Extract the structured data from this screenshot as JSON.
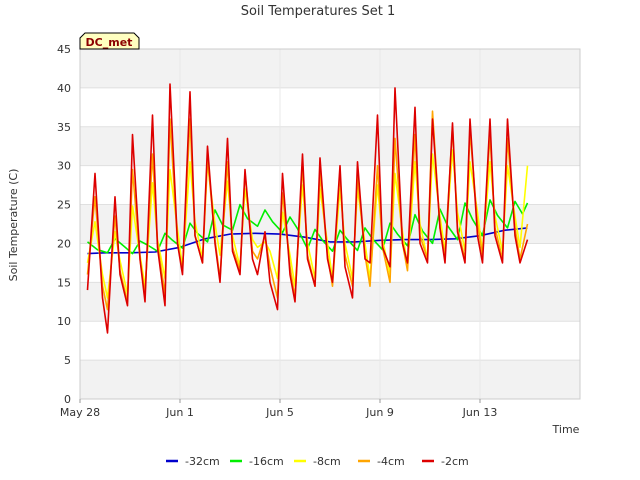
{
  "chart_data": {
    "type": "line",
    "title": "Soil Temperatures Set 1",
    "xlabel": "Time",
    "ylabel": "Soil Temperature (C)",
    "badge": "DC_met",
    "ylim": [
      0,
      45
    ],
    "yticks": [
      0,
      5,
      10,
      15,
      20,
      25,
      30,
      35,
      40,
      45
    ],
    "xlim_days": [
      0,
      20
    ],
    "xticks": [
      {
        "day": 0,
        "label": "May 28"
      },
      {
        "day": 4,
        "label": "Jun 1"
      },
      {
        "day": 8,
        "label": "Jun 5"
      },
      {
        "day": 12,
        "label": "Jun 9"
      },
      {
        "day": 16,
        "label": "Jun 13"
      }
    ],
    "grid": true,
    "legend_position": "bottom-center",
    "series": [
      {
        "name": "-32cm",
        "color": "#0000cc",
        "x": [
          0.3,
          1,
          2,
          3,
          4,
          5,
          6,
          7,
          8,
          9,
          10,
          11,
          12,
          13,
          14,
          15,
          16,
          17,
          17.9
        ],
        "y": [
          18.7,
          18.8,
          18.8,
          18.9,
          19.5,
          20.6,
          21.2,
          21.3,
          21.2,
          20.8,
          20.2,
          20.2,
          20.4,
          20.5,
          20.5,
          20.6,
          21.0,
          21.7,
          22.0
        ]
      },
      {
        "name": "-16cm",
        "color": "#00ee00",
        "x": [
          0.3,
          0.7,
          1.1,
          1.4,
          1.7,
          2.1,
          2.4,
          2.7,
          3.1,
          3.4,
          3.7,
          4.1,
          4.4,
          4.7,
          5.1,
          5.4,
          5.7,
          6.1,
          6.4,
          6.7,
          7.1,
          7.4,
          7.7,
          8.1,
          8.4,
          8.7,
          9.1,
          9.4,
          9.7,
          10.1,
          10.4,
          10.7,
          11.1,
          11.4,
          11.7,
          12.1,
          12.4,
          12.7,
          13.1,
          13.4,
          13.7,
          14.1,
          14.4,
          14.7,
          15.1,
          15.4,
          15.7,
          16.1,
          16.4,
          16.7,
          17.1,
          17.4,
          17.7,
          17.9
        ],
        "y": [
          20.2,
          19.2,
          18.8,
          20.6,
          19.8,
          18.7,
          20.3,
          19.8,
          19.0,
          21.3,
          20.4,
          19.4,
          22.6,
          21.3,
          20.2,
          24.3,
          22.4,
          21.7,
          25.0,
          23.2,
          22.2,
          24.3,
          22.8,
          21.4,
          23.4,
          21.9,
          19.3,
          21.8,
          20.4,
          19.0,
          21.7,
          20.5,
          19.1,
          22.0,
          20.6,
          19.2,
          22.6,
          21.2,
          19.7,
          23.7,
          21.6,
          20.0,
          24.4,
          22.3,
          20.5,
          25.2,
          23.1,
          21.0,
          25.6,
          23.6,
          22.0,
          25.4,
          23.8,
          25.2
        ]
      },
      {
        "name": "-8cm",
        "color": "#ffff00",
        "x": [
          0.3,
          0.6,
          0.9,
          1.1,
          1.4,
          1.6,
          1.9,
          2.1,
          2.4,
          2.6,
          2.9,
          3.1,
          3.4,
          3.6,
          3.9,
          4.1,
          4.4,
          4.6,
          4.9,
          5.1,
          5.4,
          5.6,
          5.9,
          6.1,
          6.4,
          6.6,
          6.9,
          7.1,
          7.4,
          7.6,
          7.9,
          8.1,
          8.4,
          8.6,
          8.9,
          9.1,
          9.4,
          9.6,
          9.9,
          10.1,
          10.4,
          10.6,
          10.9,
          11.1,
          11.4,
          11.6,
          11.9,
          12.1,
          12.4,
          12.6,
          12.9,
          13.1,
          13.4,
          13.6,
          13.9,
          14.1,
          14.4,
          14.6,
          14.9,
          15.1,
          15.4,
          15.6,
          15.9,
          16.1,
          16.4,
          16.6,
          16.9,
          17.1,
          17.4,
          17.6,
          17.9
        ],
        "y": [
          17.5,
          22.8,
          16.0,
          13.0,
          21.5,
          17.8,
          13.5,
          24.8,
          18.5,
          14.5,
          27.8,
          20.5,
          15.5,
          29.5,
          21.8,
          17.0,
          30.5,
          22.8,
          18.0,
          30.3,
          22.5,
          18.5,
          28.0,
          21.0,
          17.0,
          27.0,
          20.5,
          19.5,
          20.2,
          19.0,
          15.5,
          24.0,
          18.5,
          14.5,
          27.5,
          20.0,
          15.5,
          27.0,
          20.0,
          15.5,
          27.0,
          20.0,
          15.5,
          27.0,
          20.0,
          15.5,
          27.5,
          20.5,
          16.0,
          29.0,
          21.5,
          17.0,
          30.5,
          22.5,
          18.0,
          31.5,
          23.5,
          19.0,
          32.0,
          24.0,
          19.0,
          30.5,
          24.0,
          19.0,
          30.5,
          23.5,
          19.0,
          30.0,
          23.5,
          19.5,
          30.0
        ]
      },
      {
        "name": "-4cm",
        "color": "#ffa500",
        "x": [
          0.3,
          0.6,
          0.9,
          1.1,
          1.4,
          1.6,
          1.9,
          2.1,
          2.4,
          2.6,
          2.9,
          3.1,
          3.4,
          3.6,
          3.9,
          4.1,
          4.4,
          4.6,
          4.9,
          5.1,
          5.4,
          5.6,
          5.9,
          6.1,
          6.4,
          6.6,
          6.9,
          7.1,
          7.4,
          7.6,
          7.9,
          8.1,
          8.4,
          8.6,
          8.9,
          9.1,
          9.4,
          9.6,
          9.9,
          10.1,
          10.4,
          10.6,
          10.9,
          11.1,
          11.4,
          11.6,
          11.9,
          12.1,
          12.4,
          12.6,
          12.9,
          13.1,
          13.4,
          13.6,
          13.9,
          14.1,
          14.4,
          14.6,
          14.9,
          15.1,
          15.4,
          15.6,
          15.9,
          16.1,
          16.4,
          16.6,
          16.9,
          17.1,
          17.4,
          17.6,
          17.9
        ],
        "y": [
          16.0,
          26.0,
          14.5,
          11.5,
          23.5,
          16.5,
          12.5,
          29.5,
          18.0,
          13.5,
          31.5,
          20.0,
          13.5,
          36.0,
          20.0,
          16.5,
          36.0,
          21.0,
          17.5,
          31.0,
          20.5,
          15.5,
          30.5,
          19.5,
          16.5,
          29.0,
          19.0,
          18.0,
          21.0,
          17.0,
          13.0,
          26.5,
          17.0,
          13.0,
          30.0,
          18.5,
          14.5,
          29.0,
          18.5,
          14.5,
          29.0,
          18.5,
          14.5,
          28.5,
          18.5,
          14.5,
          30.0,
          19.5,
          15.0,
          33.5,
          20.0,
          16.5,
          34.0,
          21.0,
          18.0,
          37.0,
          22.0,
          18.5,
          35.0,
          22.0,
          18.0,
          34.5,
          22.5,
          18.5,
          34.0,
          22.0,
          18.0,
          33.5,
          22.0,
          18.0,
          22.5
        ]
      },
      {
        "name": "-2cm",
        "color": "#dd0000",
        "x": [
          0.3,
          0.6,
          0.9,
          1.1,
          1.4,
          1.6,
          1.9,
          2.1,
          2.4,
          2.6,
          2.9,
          3.1,
          3.4,
          3.6,
          3.9,
          4.1,
          4.4,
          4.6,
          4.9,
          5.1,
          5.4,
          5.6,
          5.9,
          6.1,
          6.4,
          6.6,
          6.9,
          7.1,
          7.4,
          7.6,
          7.9,
          8.1,
          8.4,
          8.6,
          8.9,
          9.1,
          9.4,
          9.6,
          9.9,
          10.1,
          10.4,
          10.6,
          10.9,
          11.1,
          11.4,
          11.6,
          11.9,
          12.1,
          12.4,
          12.6,
          12.9,
          13.1,
          13.4,
          13.6,
          13.9,
          14.1,
          14.4,
          14.6,
          14.9,
          15.1,
          15.4,
          15.6,
          15.9,
          16.1,
          16.4,
          16.6,
          16.9,
          17.1,
          17.4,
          17.6,
          17.9
        ],
        "y": [
          14.0,
          29.0,
          13.0,
          8.5,
          26.0,
          16.0,
          12.0,
          34.0,
          18.0,
          12.5,
          36.5,
          19.5,
          12.0,
          40.5,
          20.0,
          16.0,
          39.5,
          21.0,
          17.5,
          32.5,
          20.0,
          15.0,
          33.5,
          19.0,
          16.0,
          29.5,
          18.0,
          16.0,
          21.5,
          15.0,
          11.5,
          29.0,
          16.0,
          12.5,
          31.5,
          18.0,
          14.5,
          31.0,
          18.0,
          15.0,
          30.0,
          17.0,
          13.0,
          30.5,
          18.0,
          17.5,
          36.5,
          19.5,
          17.0,
          40.0,
          20.0,
          17.5,
          37.5,
          20.0,
          17.5,
          36.0,
          22.0,
          17.5,
          35.5,
          21.5,
          17.5,
          36.0,
          21.0,
          17.5,
          36.0,
          21.0,
          17.5,
          36.0,
          21.0,
          17.5,
          20.5
        ]
      }
    ]
  }
}
